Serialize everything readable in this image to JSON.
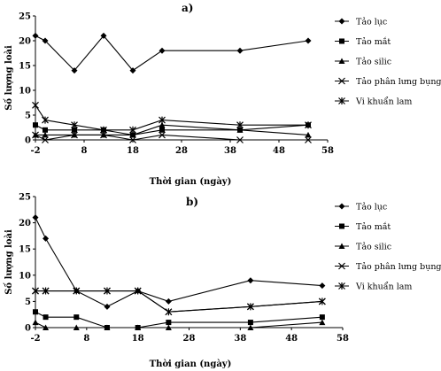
{
  "chart_data": [
    {
      "type": "line",
      "panel_label": "a)",
      "xlabel": "Thời gian (ngày)",
      "ylabel": "Số lượng loài",
      "xlim": [
        -2,
        58
      ],
      "ylim": [
        0,
        25
      ],
      "x_ticks": [
        -2,
        8,
        18,
        28,
        38,
        48,
        58
      ],
      "y_ticks": [
        0,
        5,
        10,
        15,
        20,
        25
      ],
      "legend_position": "right",
      "series": [
        {
          "name": "Tảo lục",
          "marker": "diamond",
          "x": [
            -2,
            0,
            6,
            12,
            18,
            24,
            40,
            54
          ],
          "values": [
            21,
            20,
            14,
            21,
            14,
            18,
            18,
            20
          ]
        },
        {
          "name": "Tảo mắt",
          "marker": "square",
          "x": [
            -2,
            0,
            6,
            12,
            18,
            24,
            40,
            54
          ],
          "values": [
            3,
            2,
            2,
            2,
            1,
            2,
            2,
            3
          ]
        },
        {
          "name": "Tảo silic",
          "marker": "triangle",
          "x": [
            -2,
            0,
            6,
            12,
            18,
            24,
            40,
            54
          ],
          "values": [
            1,
            1,
            1,
            1,
            1,
            3,
            2,
            1
          ]
        },
        {
          "name": "Tảo phân lưng bụng",
          "marker": "x",
          "x": [
            -2,
            0,
            6,
            12,
            18,
            24,
            40,
            54
          ],
          "values": [
            1,
            0,
            1,
            1,
            0,
            1,
            0,
            0
          ]
        },
        {
          "name": "Vi khuẩn lam",
          "marker": "star",
          "x": [
            -2,
            0,
            6,
            12,
            18,
            24,
            40,
            54
          ],
          "values": [
            7,
            4,
            3,
            2,
            2,
            4,
            3,
            3
          ]
        }
      ]
    },
    {
      "type": "line",
      "panel_label": "b)",
      "xlabel": "Thời gian (ngày)",
      "ylabel": "Số lượng loài",
      "xlim": [
        -2,
        58
      ],
      "ylim": [
        0,
        25
      ],
      "x_ticks": [
        -2,
        8,
        18,
        28,
        38,
        48,
        58
      ],
      "y_ticks": [
        0,
        5,
        10,
        15,
        20,
        25
      ],
      "legend_position": "right",
      "series": [
        {
          "name": "Tảo lục",
          "marker": "diamond",
          "x": [
            -2,
            0,
            6,
            12,
            18,
            24,
            40,
            54
          ],
          "values": [
            21,
            17,
            7,
            4,
            7,
            5,
            9,
            8
          ]
        },
        {
          "name": "Tảo mắt",
          "marker": "square",
          "x": [
            -2,
            0,
            6,
            12,
            18,
            24,
            40,
            54
          ],
          "values": [
            3,
            2,
            2,
            0,
            0,
            1,
            1,
            2
          ]
        },
        {
          "name": "Tảo silic",
          "marker": "triangle",
          "x": [
            -2,
            0,
            6,
            12,
            18,
            24,
            40,
            54
          ],
          "values": [
            1,
            0,
            0,
            0,
            0,
            0,
            0,
            1
          ]
        },
        {
          "name": "Tảo phân lưng bụng",
          "marker": "x",
          "x": [
            -2,
            0,
            6,
            12,
            18,
            24,
            40,
            54
          ],
          "values": [
            7,
            7,
            7,
            7,
            7,
            3,
            4,
            5
          ]
        },
        {
          "name": "Vi khuẩn lam",
          "marker": "star",
          "x": [
            -2,
            0,
            6,
            12,
            18,
            24,
            40,
            54
          ],
          "values": [
            7,
            7,
            7,
            7,
            7,
            3,
            4,
            5
          ]
        }
      ]
    }
  ]
}
